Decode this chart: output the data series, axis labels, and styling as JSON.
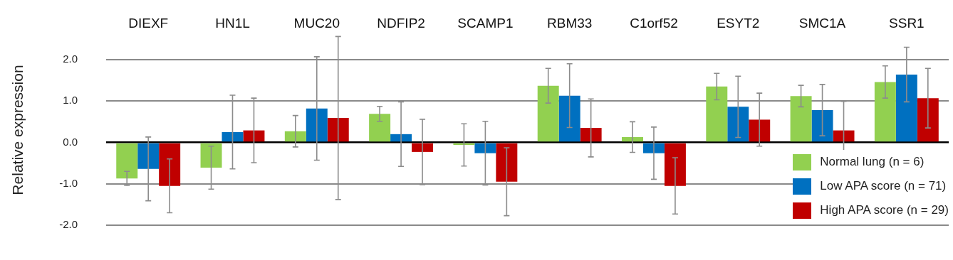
{
  "chart_data": {
    "type": "bar",
    "ylabel": "Relative expression",
    "categories": [
      "DIEXF",
      "HN1L",
      "MUC20",
      "NDFIP2",
      "SCAMP1",
      "RBM33",
      "C1orf52",
      "ESYT2",
      "SMC1A",
      "SSR1"
    ],
    "series": [
      {
        "name": "Normal lung (n = 6)",
        "color": "#92d050",
        "values": [
          -0.87,
          -0.61,
          0.27,
          0.69,
          -0.06,
          1.37,
          0.13,
          1.35,
          1.12,
          1.46
        ],
        "errors": [
          0.17,
          0.52,
          0.38,
          0.18,
          0.51,
          0.42,
          0.37,
          0.32,
          0.26,
          0.39
        ]
      },
      {
        "name": "Low APA score (n = 71)",
        "color": "#0070c0",
        "values": [
          -0.64,
          0.25,
          0.82,
          0.2,
          -0.26,
          1.13,
          -0.26,
          0.86,
          0.78,
          1.64
        ],
        "errors": [
          0.77,
          0.89,
          1.25,
          0.78,
          0.77,
          0.77,
          0.63,
          0.74,
          0.62,
          0.66
        ]
      },
      {
        "name": "High APA score (n = 29)",
        "color": "#c00000",
        "values": [
          -1.05,
          0.29,
          0.59,
          -0.23,
          -0.95,
          0.35,
          -1.05,
          0.55,
          0.29,
          1.07
        ],
        "errors": [
          0.65,
          0.78,
          1.97,
          0.79,
          0.82,
          0.7,
          0.68,
          0.64,
          0.7,
          0.72
        ]
      }
    ],
    "ylim": [
      -2,
      2.6
    ],
    "yticks": [
      {
        "value": -2,
        "label": "-2.0"
      },
      {
        "value": -1,
        "label": "-1.0"
      },
      {
        "value": 0,
        "label": "0.0"
      },
      {
        "value": 1,
        "label": "1.0"
      },
      {
        "value": 2,
        "label": "2.0"
      }
    ],
    "grid": "y",
    "legend": "bottom right"
  }
}
